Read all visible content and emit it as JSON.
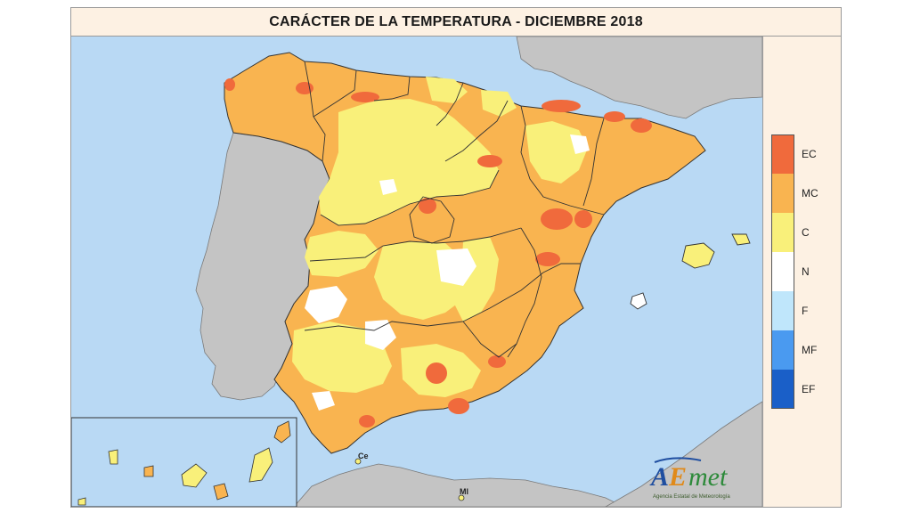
{
  "title": "CARÁCTER DE LA TEMPERATURA - DICIEMBRE 2018",
  "legend": [
    {
      "label": "EC",
      "color": "#f06a3c"
    },
    {
      "label": "MC",
      "color": "#f9b450"
    },
    {
      "label": "C",
      "color": "#f9f07a"
    },
    {
      "label": "N",
      "color": "#ffffff"
    },
    {
      "label": "F",
      "color": "#bfe6fb"
    },
    {
      "label": "MF",
      "color": "#4a9af0"
    },
    {
      "label": "EF",
      "color": "#1a5fc8"
    }
  ],
  "map_labels": {
    "ceuta": "Ce",
    "melilla": "Ml"
  },
  "logo": {
    "brand": "AEmet",
    "subtitle": "Agencia Estatal de Meteorología"
  },
  "colors": {
    "sea": "#b9d9f4",
    "foreign_land": "#c4c4c4",
    "panel": "#fdf1e3"
  }
}
